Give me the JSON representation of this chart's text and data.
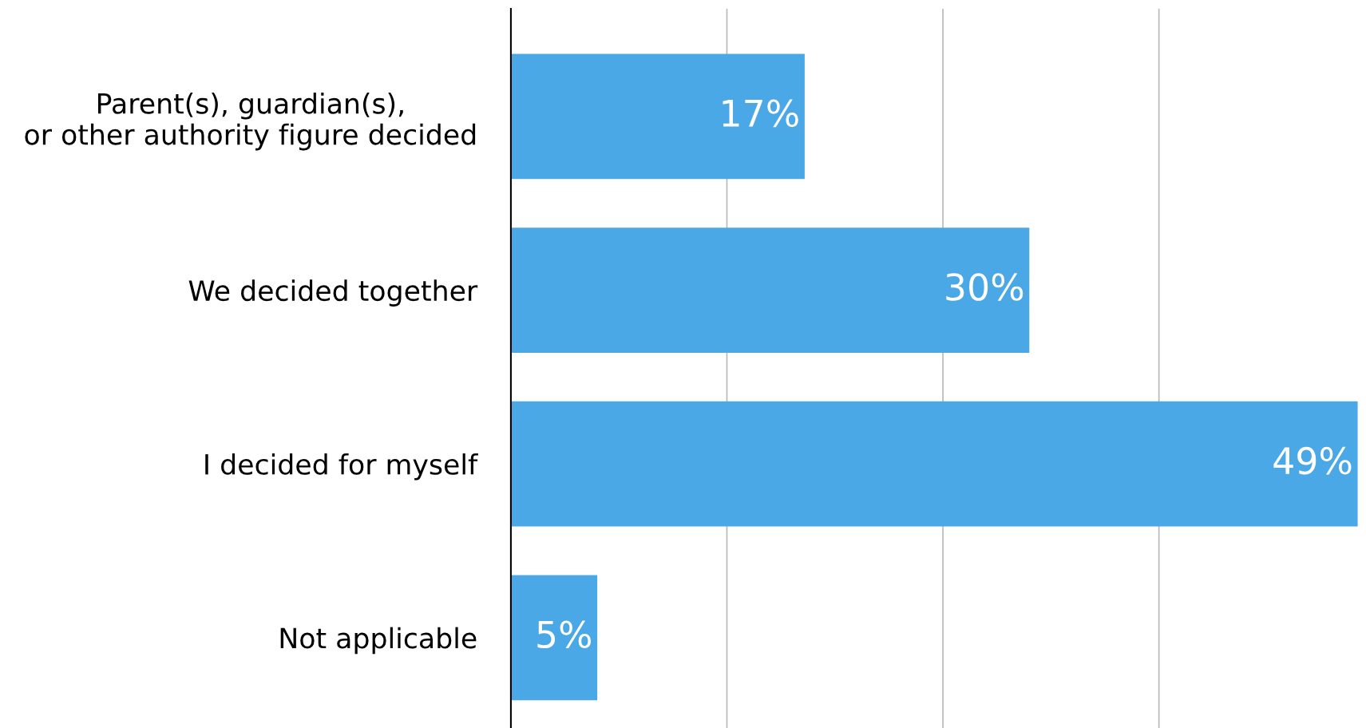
{
  "chart_data": {
    "type": "bar",
    "orientation": "horizontal",
    "categories": [
      "Parent(s), guardian(s),\nor other authority figure decided",
      "We decided together",
      "I decided for myself",
      "Not applicable"
    ],
    "values": [
      17,
      30,
      49,
      5
    ],
    "value_labels": [
      "17%",
      "30%",
      "49%",
      "5%"
    ],
    "color": "#4ba8e6",
    "xticks": [
      {
        "value": 12.5,
        "label": null
      },
      {
        "value": 25,
        "label": null
      },
      {
        "value": 37.5,
        "label": null
      }
    ],
    "tick_labels": "y",
    "grid": "x",
    "legend": false
  }
}
